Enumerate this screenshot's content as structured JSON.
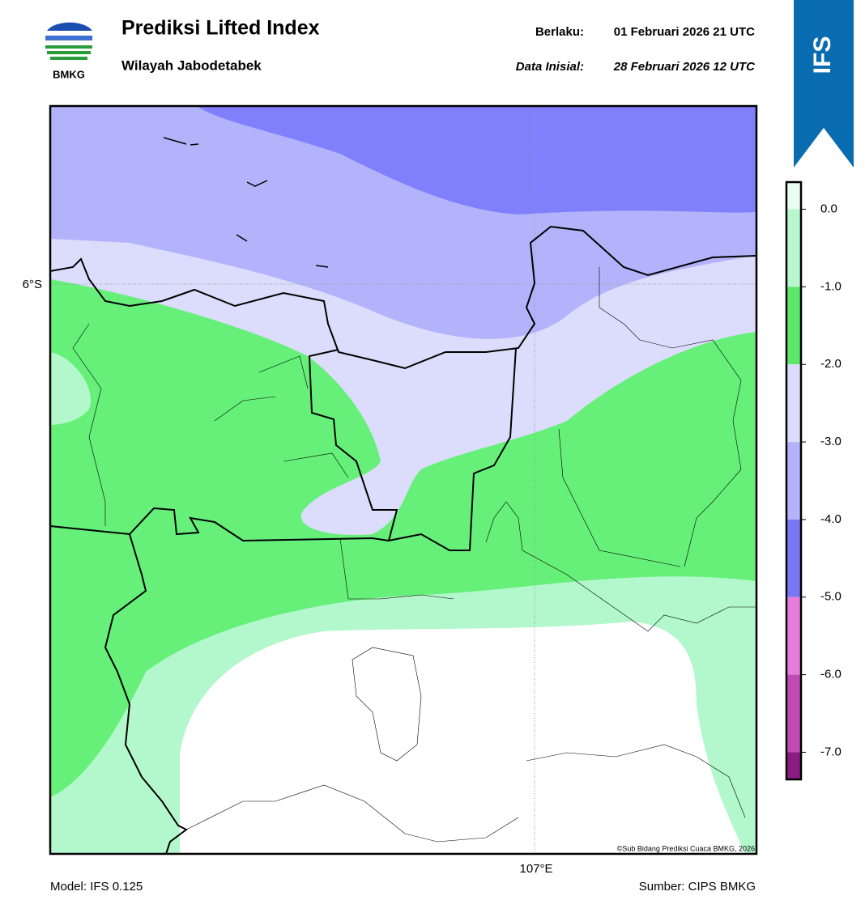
{
  "header": {
    "logo_text": "BMKG",
    "title": "Prediksi Lifted Index",
    "subtitle": "Wilayah Jabodetabek",
    "valid_label": "Berlaku:",
    "valid_time": "01 Februari 2026 21 UTC",
    "init_label": "Data Inisial:",
    "init_time": "28 Februari 2026 12 UTC",
    "badge": "IFS"
  },
  "map": {
    "lat_label": "6°S",
    "lon_label": "107°E",
    "credit": "©Sub Bidang Prediksi Cuaca BMKG, 2026"
  },
  "colorbar": {
    "lim": [
      -7.35,
      0.35
    ],
    "ticks": [
      {
        "value": 0,
        "label": "0.0"
      },
      {
        "value": -1,
        "label": "-1.0"
      },
      {
        "value": -2,
        "label": "-2.0"
      },
      {
        "value": -3,
        "label": "-3.0"
      },
      {
        "value": -4,
        "label": "-4.0"
      },
      {
        "value": -5,
        "label": "-5.0"
      },
      {
        "value": -6,
        "label": "-6.0"
      },
      {
        "value": -7,
        "label": "-7.0"
      }
    ],
    "colors": [
      "#e6fff0",
      "#b9f7cf",
      "#5ee86a",
      "#dcdcfc",
      "#b3b3fc",
      "#7878f4",
      "#e67ddc",
      "#c24ab6",
      "#8c1c84"
    ]
  },
  "footer": {
    "model": "Model: IFS 0.125",
    "source": "Sumber: CIPS BMKG"
  }
}
